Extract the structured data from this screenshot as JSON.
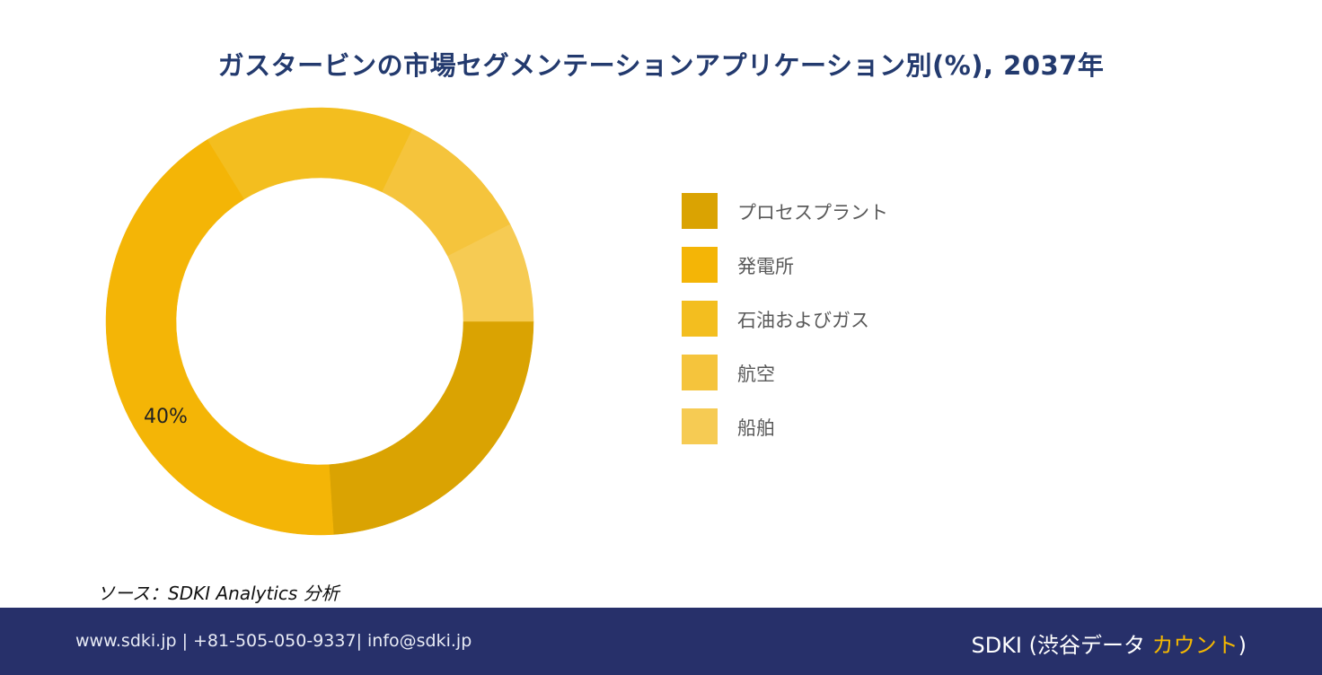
{
  "chart_data": {
    "type": "pie",
    "title": "ガスタービンの市場セグメンテーションアプリケーション別(%), 2037年",
    "categories": [
      "プロセスプラント",
      "発電所",
      "石油およびガス",
      "航空",
      "船舶"
    ],
    "values": [
      22.7,
      40,
      15.1,
      9.8,
      7.1
    ],
    "data_labels": [
      "",
      "40%",
      "",
      "",
      ""
    ],
    "colors": [
      "#daa302",
      "#f4b506",
      "#f3be1f",
      "#f5c43c",
      "#f6cb53"
    ],
    "donut": true,
    "start": "3 o'clock, clockwise",
    "legend_position": "right"
  },
  "footer": {
    "source": "ソース：SDKI Analytics 分析",
    "contact": "www.sdki.jp | +81-505-050-9337| info@sdki.jp",
    "brand_main": "SDKI (渋谷データ ",
    "brand_accent": "カウント",
    "brand_end": ")"
  }
}
